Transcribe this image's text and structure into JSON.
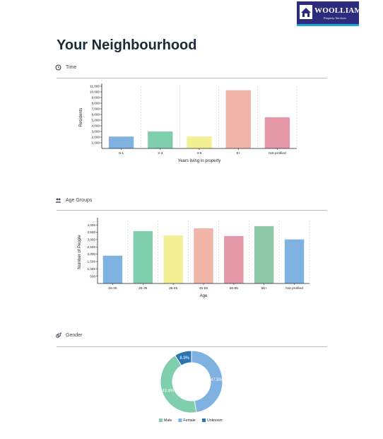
{
  "brand": {
    "name": "WOOLLIAMS",
    "tagline": "Property Services",
    "colors": {
      "background": "#2b2d7c",
      "accent": "#19a7dd"
    },
    "icon": "house-logo-icon"
  },
  "page_title": "Your Neighbourhood",
  "sections": {
    "time": {
      "label": "Time",
      "icon": "clock-icon"
    },
    "age": {
      "label": "Age Groups",
      "icon": "people-icon"
    },
    "gender": {
      "label": "Gender",
      "icon": "gender-icon"
    }
  },
  "chart_data": [
    {
      "type": "bar",
      "categories": [
        "0-1",
        "2-3",
        "4-5",
        "6+",
        "Not profiled"
      ],
      "values": [
        2100,
        3000,
        2100,
        10300,
        5500
      ],
      "colors": [
        "#7fb2e0",
        "#7fcfae",
        "#f3ef93",
        "#f0b5a7",
        "#e597a8"
      ],
      "xlabel": "Years living in property",
      "ylabel": "Residents",
      "ylim": [
        0,
        11000
      ],
      "yticks": [
        "1,000",
        "2,000",
        "3,000",
        "4,000",
        "5,000",
        "6,000",
        "7,000",
        "8,000",
        "9,000",
        "10,000",
        "11,000"
      ],
      "ytick_values": [
        1000,
        2000,
        3000,
        4000,
        5000,
        6000,
        7000,
        8000,
        9000,
        10000,
        11000
      ],
      "grid": "vertical dashed"
    },
    {
      "type": "bar",
      "categories": [
        "18-25",
        "26-35",
        "36-45",
        "46-55",
        "56-65",
        "66+",
        "Not profiled"
      ],
      "values": [
        1900,
        3580,
        3280,
        3770,
        3240,
        3920,
        3010
      ],
      "colors": [
        "#7fb2e0",
        "#7fcfae",
        "#f3ef93",
        "#f0b5a7",
        "#e597a8",
        "#8ec8a8",
        "#7fb2e0"
      ],
      "xlabel": "Age",
      "ylabel": "Number of People",
      "ylim": [
        0,
        4300
      ],
      "yticks": [
        "500",
        "1,000",
        "1,500",
        "2,000",
        "2,500",
        "3,000",
        "3,500",
        "4,000"
      ],
      "ytick_values": [
        500,
        1000,
        1500,
        2000,
        2500,
        3000,
        3500,
        4000
      ],
      "grid": "vertical dashed"
    },
    {
      "type": "pie",
      "style": "donut",
      "slices": [
        {
          "name": "Female",
          "value": 47.5,
          "label": "47.5%",
          "color": "#7fb2e0"
        },
        {
          "name": "Male",
          "value": 43.6,
          "label": "43.6%",
          "color": "#7fcfae"
        },
        {
          "name": "Unknown",
          "value": 8.9,
          "label": "8.9%",
          "color": "#2a74b3"
        }
      ],
      "legend": [
        "Male",
        "Female",
        "Unknown"
      ],
      "legend_colors": [
        "#7fcfae",
        "#7fb2e0",
        "#2a74b3"
      ],
      "legend_position": "bottom"
    }
  ]
}
